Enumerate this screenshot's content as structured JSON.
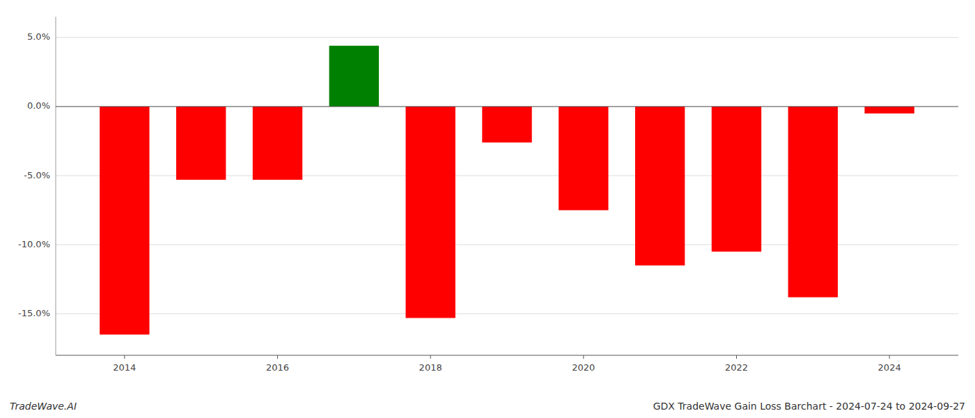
{
  "chart_data": {
    "type": "bar",
    "title": "GDX TradeWave Gain Loss Barchart - 2024-07-24 to 2024-09-27",
    "annotations": [
      "TradeWave.AI"
    ],
    "x": [
      2014,
      2015,
      2016,
      2017,
      2018,
      2019,
      2020,
      2021,
      2022,
      2023,
      2024
    ],
    "values": [
      -16.5,
      -5.3,
      -5.3,
      4.4,
      -15.3,
      -2.6,
      -7.5,
      -11.5,
      -10.5,
      -13.8,
      -0.5
    ],
    "colors": [
      "#ff0000",
      "#ff0000",
      "#ff0000",
      "#008000",
      "#ff0000",
      "#ff0000",
      "#ff0000",
      "#ff0000",
      "#ff0000",
      "#ff0000",
      "#ff0000"
    ],
    "xlim": [
      2013.1,
      2024.9
    ],
    "xticks": [
      2014,
      2016,
      2018,
      2020,
      2022,
      2024
    ],
    "ylim": [
      -18.0,
      6.5
    ],
    "yticks": [
      {
        "value": 5.0,
        "label": "5.0%"
      },
      {
        "value": 0.0,
        "label": "0.0%"
      },
      {
        "value": -5.0,
        "label": "-5.0%"
      },
      {
        "value": -10.0,
        "label": "-10.0%"
      },
      {
        "value": -15.0,
        "label": "-15.0%"
      }
    ],
    "grid": true
  }
}
